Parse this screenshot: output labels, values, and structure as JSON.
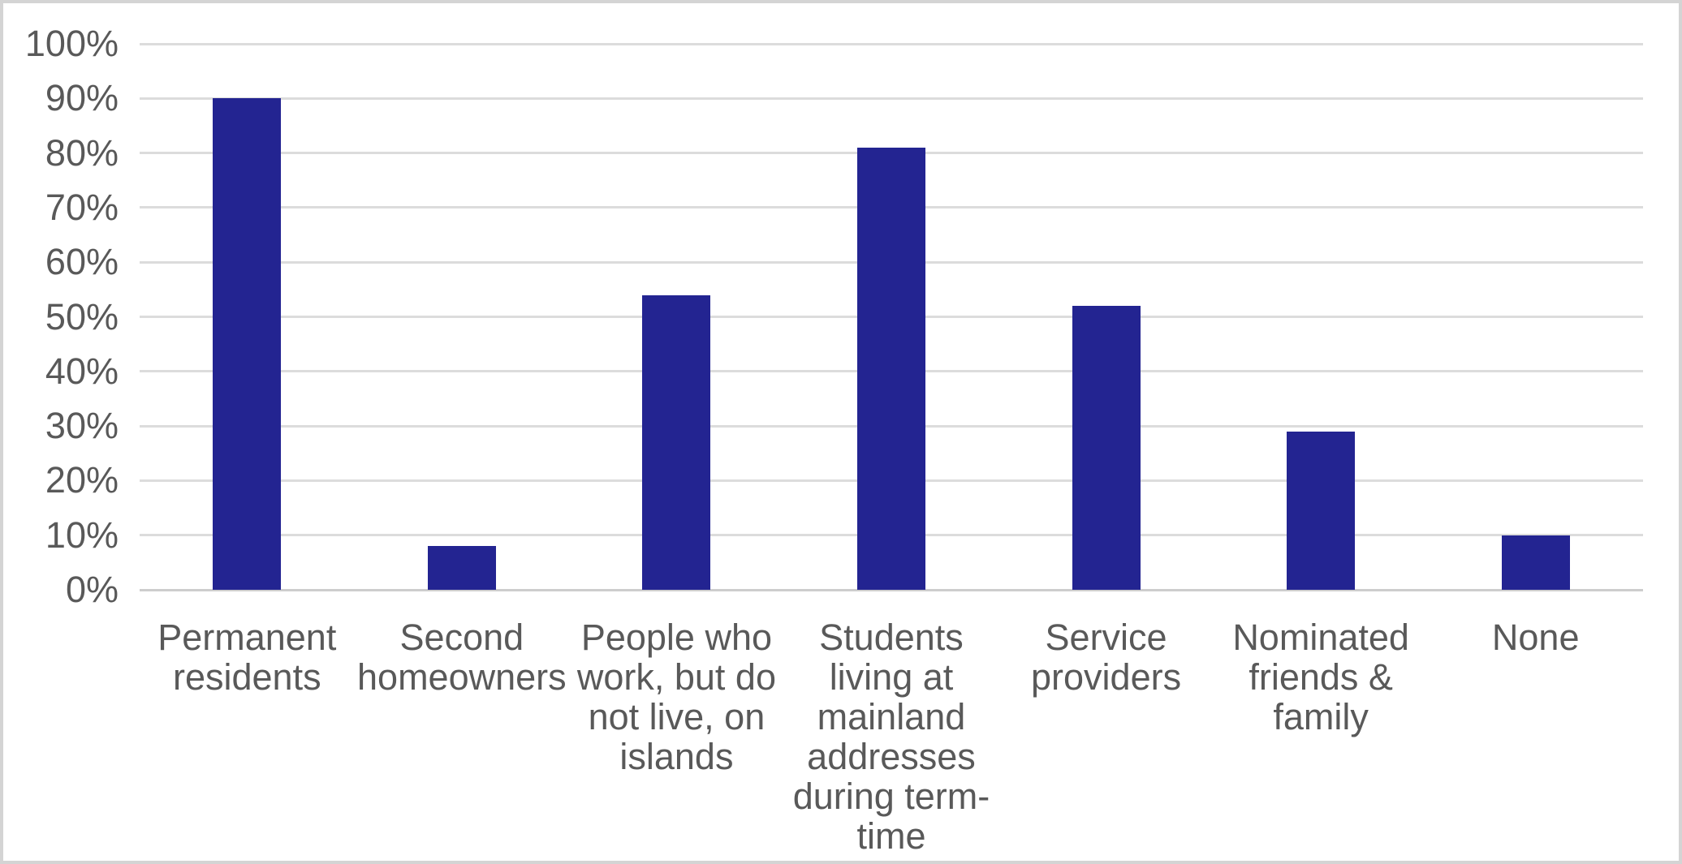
{
  "chart_data": {
    "type": "bar",
    "categories": [
      "Permanent residents",
      "Second homeowners",
      "People who work, but do not live, on islands",
      "Students living at mainland addresses during term-time",
      "Service providers",
      "Nominated friends & family",
      "None"
    ],
    "label_lines": [
      [
        "Permanent",
        "residents"
      ],
      [
        "Second",
        "homeowners"
      ],
      [
        "People who",
        "work, but do",
        "not live, on",
        "islands"
      ],
      [
        "Students",
        "living at",
        "mainland",
        "addresses",
        "during term-",
        "time"
      ],
      [
        "Service",
        "providers"
      ],
      [
        "Nominated",
        "friends &",
        "family"
      ],
      [
        "None"
      ]
    ],
    "values": [
      90,
      8,
      54,
      81,
      52,
      29,
      10
    ],
    "value_unit": "%",
    "xlabel": "",
    "ylabel": "",
    "ylim": [
      0,
      100
    ],
    "ytick_step": 10,
    "ytick_labels": [
      "0%",
      "10%",
      "20%",
      "30%",
      "40%",
      "50%",
      "60%",
      "70%",
      "80%",
      "90%",
      "100%"
    ],
    "grid": true,
    "legend": "none",
    "bar_color": "#232491",
    "gridline_color": "#dcdcdc",
    "axis_line_color": "#cdcdcd",
    "tick_label_color": "#595959",
    "background_color": "#ffffff",
    "frame_border_color": "#d4d4d4"
  }
}
